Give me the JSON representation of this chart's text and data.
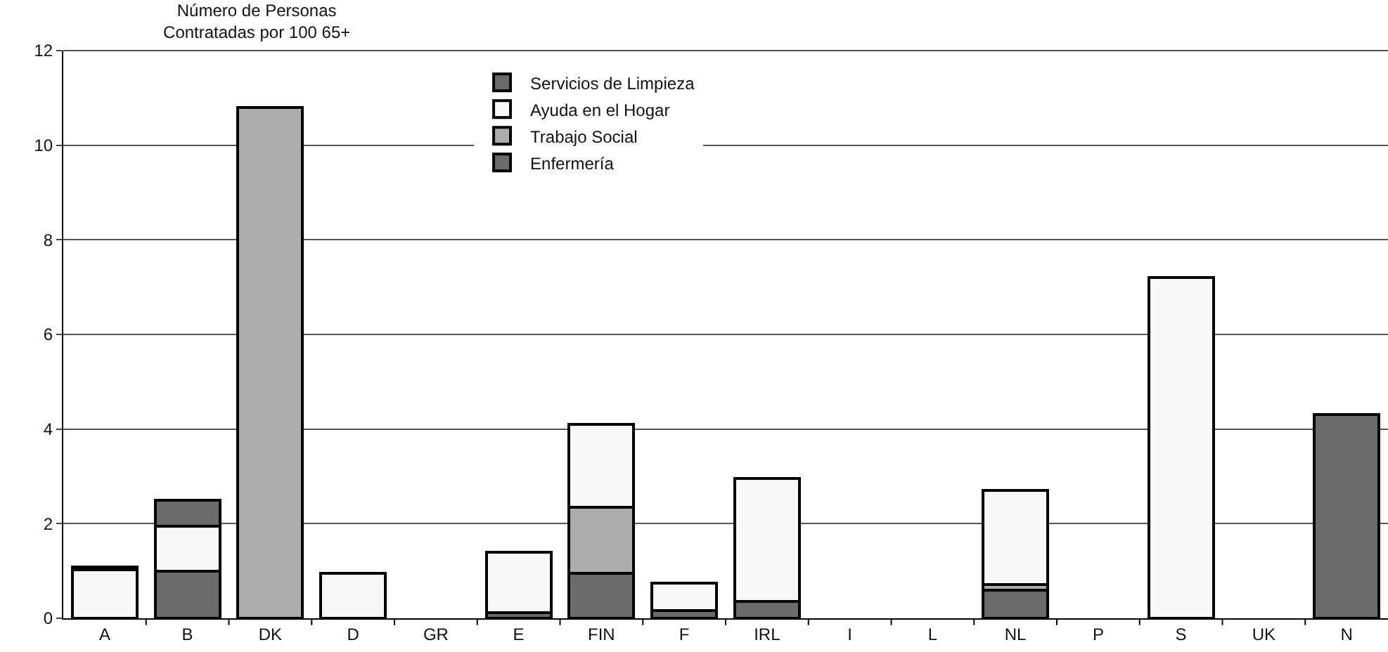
{
  "chart_data": {
    "type": "bar",
    "stacked": true,
    "title": "Número de Personas\nContratadas por 100 65+",
    "categories": [
      "A",
      "B",
      "DK",
      "D",
      "GR",
      "E",
      "FIN",
      "F",
      "IRL",
      "I",
      "L",
      "NL",
      "P",
      "S",
      "UK",
      "N"
    ],
    "series": [
      {
        "name": "Enfermería",
        "color": "#6b6b6b",
        "values": [
          null,
          1.0,
          null,
          null,
          null,
          0.12,
          0.95,
          0.17,
          0.35,
          null,
          null,
          0.6,
          null,
          null,
          null,
          4.3
        ]
      },
      {
        "name": "Trabajo Social",
        "color": "#adadad",
        "values": [
          null,
          null,
          10.8,
          null,
          null,
          null,
          1.4,
          null,
          null,
          null,
          null,
          0.12,
          null,
          null,
          null,
          null
        ]
      },
      {
        "name": "Ayuda en el Hogar",
        "color": "#f8f8f8",
        "values": [
          1.03,
          0.95,
          null,
          0.95,
          null,
          1.28,
          1.75,
          0.58,
          2.6,
          null,
          null,
          1.98,
          null,
          7.2,
          null,
          null
        ]
      },
      {
        "name": "Servicios de Limpieza",
        "color": "#6b6b6b",
        "values": [
          0.05,
          0.55,
          null,
          null,
          null,
          null,
          null,
          null,
          null,
          null,
          null,
          null,
          null,
          null,
          null,
          null
        ]
      }
    ],
    "ylim": [
      0,
      12
    ],
    "yticks": [
      0,
      2,
      4,
      6,
      8,
      10,
      12
    ],
    "grid": "y",
    "legend": "top"
  }
}
